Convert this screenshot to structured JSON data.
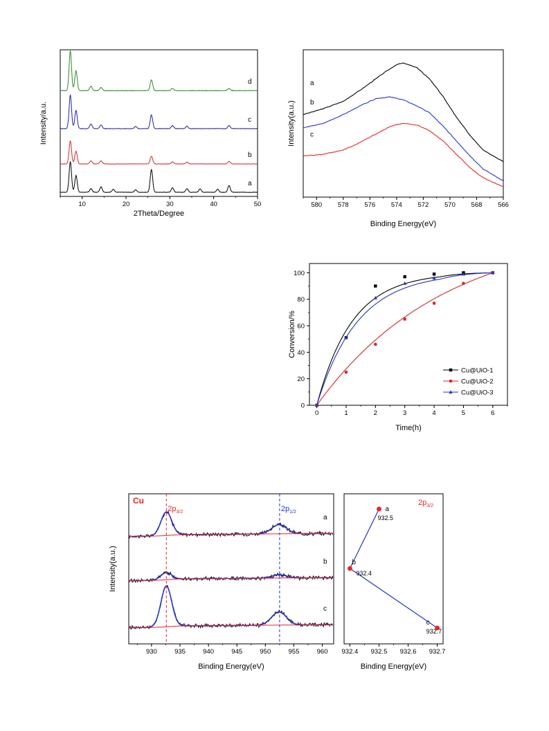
{
  "chart_data": [
    {
      "type": "line",
      "xlabel": "2Theta/Degree",
      "ylabel": "Intensity/a.u.",
      "xlim": [
        5,
        50
      ],
      "xticks": [
        "10",
        "20",
        "30",
        "40",
        "50"
      ],
      "yticks": [],
      "series": [
        {
          "name": "a",
          "color": "#000000",
          "peaks": [
            [
              7.3,
              1.0
            ],
            [
              8.6,
              0.55
            ],
            [
              12.0,
              0.12
            ],
            [
              14.3,
              0.18
            ],
            [
              17.1,
              0.1
            ],
            [
              22.2,
              0.08
            ],
            [
              25.8,
              0.75
            ],
            [
              30.6,
              0.15
            ],
            [
              33.9,
              0.12
            ],
            [
              36.9,
              0.11
            ],
            [
              40.9,
              0.1
            ],
            [
              43.5,
              0.22
            ]
          ]
        },
        {
          "name": "b",
          "color": "#d62728",
          "peaks": [
            [
              7.3,
              0.9
            ],
            [
              8.6,
              0.5
            ],
            [
              12.0,
              0.12
            ],
            [
              14.3,
              0.12
            ],
            [
              25.8,
              0.3
            ],
            [
              30.6,
              0.08
            ],
            [
              33.9,
              0.07
            ],
            [
              43.5,
              0.1
            ]
          ]
        },
        {
          "name": "c",
          "color": "#1f1f9e",
          "peaks": [
            [
              7.3,
              1.1
            ],
            [
              8.6,
              0.6
            ],
            [
              12.0,
              0.15
            ],
            [
              14.3,
              0.12
            ],
            [
              22.2,
              0.07
            ],
            [
              25.8,
              0.45
            ],
            [
              30.6,
              0.1
            ],
            [
              33.9,
              0.08
            ],
            [
              43.5,
              0.1
            ]
          ]
        },
        {
          "name": "d",
          "color": "#2a8a2a",
          "peaks": [
            [
              7.3,
              1.1
            ],
            [
              8.6,
              0.55
            ],
            [
              12.0,
              0.12
            ],
            [
              14.3,
              0.09
            ],
            [
              25.8,
              0.3
            ],
            [
              30.6,
              0.06
            ],
            [
              43.5,
              0.06
            ]
          ]
        }
      ]
    },
    {
      "type": "line",
      "xlabel": "Binding Energy(eV)",
      "ylabel": "Intensity(a.u.)",
      "xlim": [
        581,
        566
      ],
      "xticks": [
        "580",
        "578",
        "576",
        "574",
        "572",
        "570",
        "568",
        "566"
      ],
      "yticks": [],
      "series": [
        {
          "name": "a",
          "color": "#000000",
          "points": [
            [
              581,
              0.56
            ],
            [
              579.5,
              0.6
            ],
            [
              578,
              0.65
            ],
            [
              576.5,
              0.74
            ],
            [
              575,
              0.84
            ],
            [
              574,
              0.9
            ],
            [
              573.5,
              0.91
            ],
            [
              572.5,
              0.88
            ],
            [
              571.5,
              0.8
            ],
            [
              570.5,
              0.68
            ],
            [
              569.5,
              0.54
            ],
            [
              568.5,
              0.42
            ],
            [
              567.5,
              0.32
            ],
            [
              566,
              0.24
            ]
          ]
        },
        {
          "name": "b",
          "color": "#2233dd",
          "points": [
            [
              581,
              0.47
            ],
            [
              579.5,
              0.5
            ],
            [
              578,
              0.56
            ],
            [
              576.5,
              0.63
            ],
            [
              575.5,
              0.67
            ],
            [
              574.5,
              0.68
            ],
            [
              573.5,
              0.66
            ],
            [
              572.5,
              0.62
            ],
            [
              571.5,
              0.57
            ],
            [
              570.5,
              0.48
            ],
            [
              569.5,
              0.38
            ],
            [
              568.5,
              0.28
            ],
            [
              567.5,
              0.19
            ],
            [
              566,
              0.11
            ]
          ]
        },
        {
          "name": "c",
          "color": "#ee2222",
          "points": [
            [
              581,
              0.28
            ],
            [
              579.5,
              0.29
            ],
            [
              578,
              0.32
            ],
            [
              577,
              0.36
            ],
            [
              575.5,
              0.43
            ],
            [
              574.5,
              0.48
            ],
            [
              573.5,
              0.5
            ],
            [
              572.5,
              0.49
            ],
            [
              571.5,
              0.45
            ],
            [
              570.5,
              0.38
            ],
            [
              569.5,
              0.29
            ],
            [
              568.5,
              0.2
            ],
            [
              567.5,
              0.13
            ],
            [
              566,
              0.07
            ]
          ]
        }
      ]
    },
    {
      "type": "scatter",
      "xlabel": "Time(h)",
      "ylabel": "Conversion/%",
      "xlim": [
        0,
        6.5
      ],
      "ylim": [
        0,
        107
      ],
      "xticks": [
        "0",
        "1",
        "2",
        "3",
        "4",
        "5",
        "6"
      ],
      "yticks": [
        "0",
        "20",
        "40",
        "60",
        "80",
        "100"
      ],
      "legend_position": "bottom-right",
      "series": [
        {
          "name": "Cu@UiO-1",
          "color": "#000000",
          "marker": "square",
          "points": [
            [
              0,
              0
            ],
            [
              1,
              51
            ],
            [
              2,
              90
            ],
            [
              3,
              97
            ],
            [
              4,
              99
            ],
            [
              5,
              100
            ],
            [
              6,
              100
            ]
          ]
        },
        {
          "name": "Cu@UiO-2",
          "color": "#d62728",
          "marker": "circle",
          "points": [
            [
              0,
              0
            ],
            [
              1,
              25
            ],
            [
              2,
              46
            ],
            [
              3,
              65
            ],
            [
              4,
              77
            ],
            [
              5,
              92
            ],
            [
              6,
              100
            ]
          ]
        },
        {
          "name": "Cu@UiO-3",
          "color": "#2233cc",
          "marker": "triangle",
          "points": [
            [
              0,
              0
            ],
            [
              1,
              51
            ],
            [
              2,
              81
            ],
            [
              3,
              92
            ],
            [
              4,
              96
            ],
            [
              5,
              99
            ],
            [
              6,
              100
            ]
          ]
        }
      ]
    },
    {
      "type": "line",
      "xlabel": "Binding Energy(eV)",
      "ylabel": "Intensity(a.u.)",
      "xlim": [
        926,
        962
      ],
      "xticks": [
        "930",
        "935",
        "940",
        "945",
        "950",
        "955",
        "960"
      ],
      "yticks": [],
      "panel_label": "Cu",
      "annotations": [
        {
          "base": "2p",
          "sub": "3/2",
          "x": 932.6,
          "color": "#ee2222"
        },
        {
          "base": "2p",
          "sub": "1/2",
          "x": 952.5,
          "color": "#2233dd"
        }
      ],
      "series": [
        {
          "name": "a",
          "peak1": 0.36,
          "peak2": 0.14
        },
        {
          "name": "b",
          "peak1": 0.11,
          "peak2": 0.05
        },
        {
          "name": "c",
          "peak1": 0.62,
          "peak2": 0.2
        }
      ]
    },
    {
      "type": "scatter",
      "xlabel": "Binding Energy(eV)",
      "xlim": [
        932.38,
        932.72
      ],
      "xticks": [
        "932.4",
        "932.5",
        "932.6",
        "932.7"
      ],
      "panel_label": {
        "base": "2p",
        "sub": "3/2"
      },
      "points": [
        {
          "name": "a",
          "x": 932.5,
          "label": "932.5"
        },
        {
          "name": "b",
          "x": 932.4,
          "label": "932.4"
        },
        {
          "name": "c",
          "x": 932.7,
          "label": "932.7"
        }
      ]
    }
  ]
}
